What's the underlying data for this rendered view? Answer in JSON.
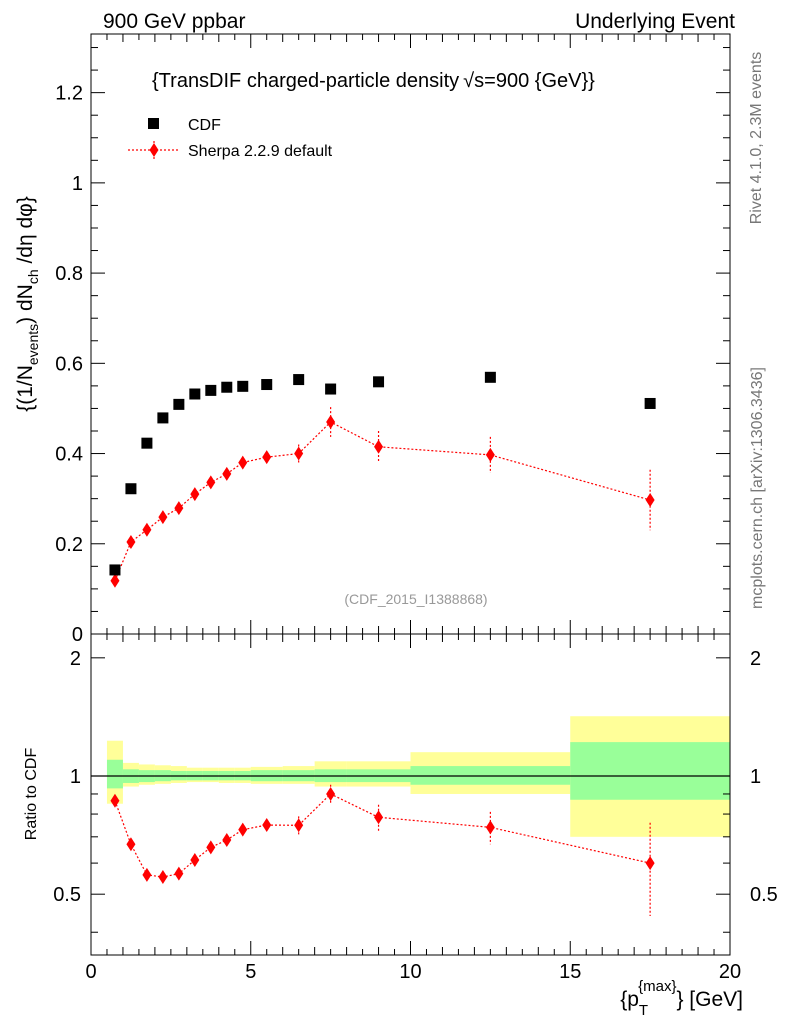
{
  "header": {
    "left": "900 GeV ppbar",
    "right": "Underlying Event"
  },
  "side_labels": {
    "rivet": "Rivet 4.1.0,  2.3M events",
    "mcplots": "mcplots.cern.ch [arXiv:1306.3436]"
  },
  "chart_data": [
    {
      "type": "scatter",
      "title": "{TransDIF charged-particle density √s=900 {GeV}}",
      "title_main": "{TransDIF charged-particle density",
      "title_sqrt": "√s",
      "title_tail": "=900 {GeV}}",
      "ylabel": "{(1/N_events) dN_ch /dη dφ}",
      "ylabel_parts": {
        "a": "{(1/N",
        "b": "events",
        "c": ") dN",
        "d": "ch",
        "e": " /dη  dφ}"
      },
      "xlim": [
        0,
        20
      ],
      "ylim": [
        0,
        1.33
      ],
      "yticks": [
        0,
        0.2,
        0.4,
        0.6,
        0.8,
        1,
        1.2
      ],
      "ytick_labels": [
        "0",
        "0.2",
        "0.4",
        "0.6",
        "0.8",
        "1",
        "1.2"
      ],
      "watermark": "(CDF_2015_I1388868)",
      "legend": {
        "position": "top-left",
        "entries": [
          "CDF",
          "Sherpa 2.2.9 default"
        ]
      },
      "series": [
        {
          "name": "CDF",
          "color": "#000000",
          "marker": "square",
          "x": [
            0.75,
            1.25,
            1.75,
            2.25,
            2.75,
            3.25,
            3.75,
            4.25,
            4.75,
            5.5,
            6.5,
            7.5,
            9.0,
            12.5,
            17.5
          ],
          "y": [
            0.142,
            0.322,
            0.423,
            0.479,
            0.509,
            0.532,
            0.54,
            0.547,
            0.549,
            0.553,
            0.564,
            0.543,
            0.559,
            0.569,
            0.511
          ]
        },
        {
          "name": "Sherpa 2.2.9 default",
          "color": "#ff0000",
          "marker": "diamond",
          "line": "dotted",
          "x": [
            0.75,
            1.25,
            1.75,
            2.25,
            2.75,
            3.25,
            3.75,
            4.25,
            4.75,
            5.5,
            6.5,
            7.5,
            9.0,
            12.5,
            17.5
          ],
          "y": [
            0.118,
            0.204,
            0.231,
            0.259,
            0.279,
            0.31,
            0.336,
            0.355,
            0.38,
            0.392,
            0.4,
            0.47,
            0.415,
            0.397,
            0.297
          ],
          "yerr": [
            0.008,
            0.006,
            0.006,
            0.006,
            0.007,
            0.008,
            0.009,
            0.01,
            0.012,
            0.014,
            0.02,
            0.033,
            0.035,
            0.04,
            0.067
          ]
        }
      ]
    },
    {
      "type": "scatter",
      "ylabel": "Ratio to CDF",
      "xlabel": "{p_T^{max}} [GeV]",
      "xlabel_parts": {
        "a": "{p",
        "sub": "T",
        "sup": "{max}",
        "b": "} [GeV]"
      },
      "xlim": [
        0,
        20
      ],
      "ylim": [
        0.35,
        2.3
      ],
      "xticks": [
        0,
        5,
        10,
        15,
        20
      ],
      "xtick_labels": [
        "0",
        "5",
        "10",
        "15",
        "20"
      ],
      "yticks": [
        0.5,
        1,
        2
      ],
      "ytick_labels": [
        "0.5",
        "1",
        "2"
      ],
      "reference_line": 1,
      "uncertainty_bands": {
        "bins": [
          [
            0.5,
            1.0
          ],
          [
            1.0,
            1.5
          ],
          [
            1.5,
            2.0
          ],
          [
            2.0,
            2.5
          ],
          [
            2.5,
            3.0
          ],
          [
            3.0,
            3.5
          ],
          [
            3.5,
            4.0
          ],
          [
            4.0,
            4.5
          ],
          [
            4.5,
            5.0
          ],
          [
            5.0,
            6.0
          ],
          [
            6.0,
            7.0
          ],
          [
            7.0,
            8.0
          ],
          [
            8.0,
            10.0
          ],
          [
            10.0,
            15.0
          ],
          [
            15.0,
            20.0
          ]
        ],
        "stat_color": "#99ff99",
        "syst_color": "#ffff99",
        "green_lo": [
          0.93,
          0.96,
          0.965,
          0.97,
          0.975,
          0.975,
          0.975,
          0.975,
          0.975,
          0.97,
          0.97,
          0.965,
          0.965,
          0.95,
          0.87
        ],
        "green_hi": [
          1.1,
          1.04,
          1.035,
          1.035,
          1.03,
          1.03,
          1.03,
          1.03,
          1.03,
          1.035,
          1.035,
          1.04,
          1.04,
          1.06,
          1.22
        ],
        "yellow_lo": [
          0.85,
          0.94,
          0.95,
          0.955,
          0.96,
          0.965,
          0.965,
          0.96,
          0.96,
          0.955,
          0.955,
          0.94,
          0.94,
          0.9,
          0.7
        ],
        "yellow_hi": [
          1.23,
          1.08,
          1.07,
          1.065,
          1.06,
          1.05,
          1.05,
          1.05,
          1.05,
          1.055,
          1.06,
          1.09,
          1.09,
          1.15,
          1.42
        ]
      },
      "series": [
        {
          "name": "Sherpa 2.2.9 default / CDF",
          "color": "#ff0000",
          "marker": "diamond",
          "line": "dotted",
          "x": [
            0.75,
            1.25,
            1.75,
            2.25,
            2.75,
            3.25,
            3.75,
            4.25,
            4.75,
            5.5,
            6.5,
            7.5,
            9.0,
            12.5,
            17.5
          ],
          "y": [
            0.865,
            0.67,
            0.56,
            0.553,
            0.564,
            0.611,
            0.658,
            0.687,
            0.73,
            0.75,
            0.749,
            0.9,
            0.785,
            0.74,
            0.6
          ],
          "yerr": [
            0.02,
            0.015,
            0.012,
            0.012,
            0.012,
            0.015,
            0.016,
            0.017,
            0.02,
            0.03,
            0.04,
            0.05,
            0.06,
            0.07,
            0.16
          ]
        }
      ]
    }
  ]
}
